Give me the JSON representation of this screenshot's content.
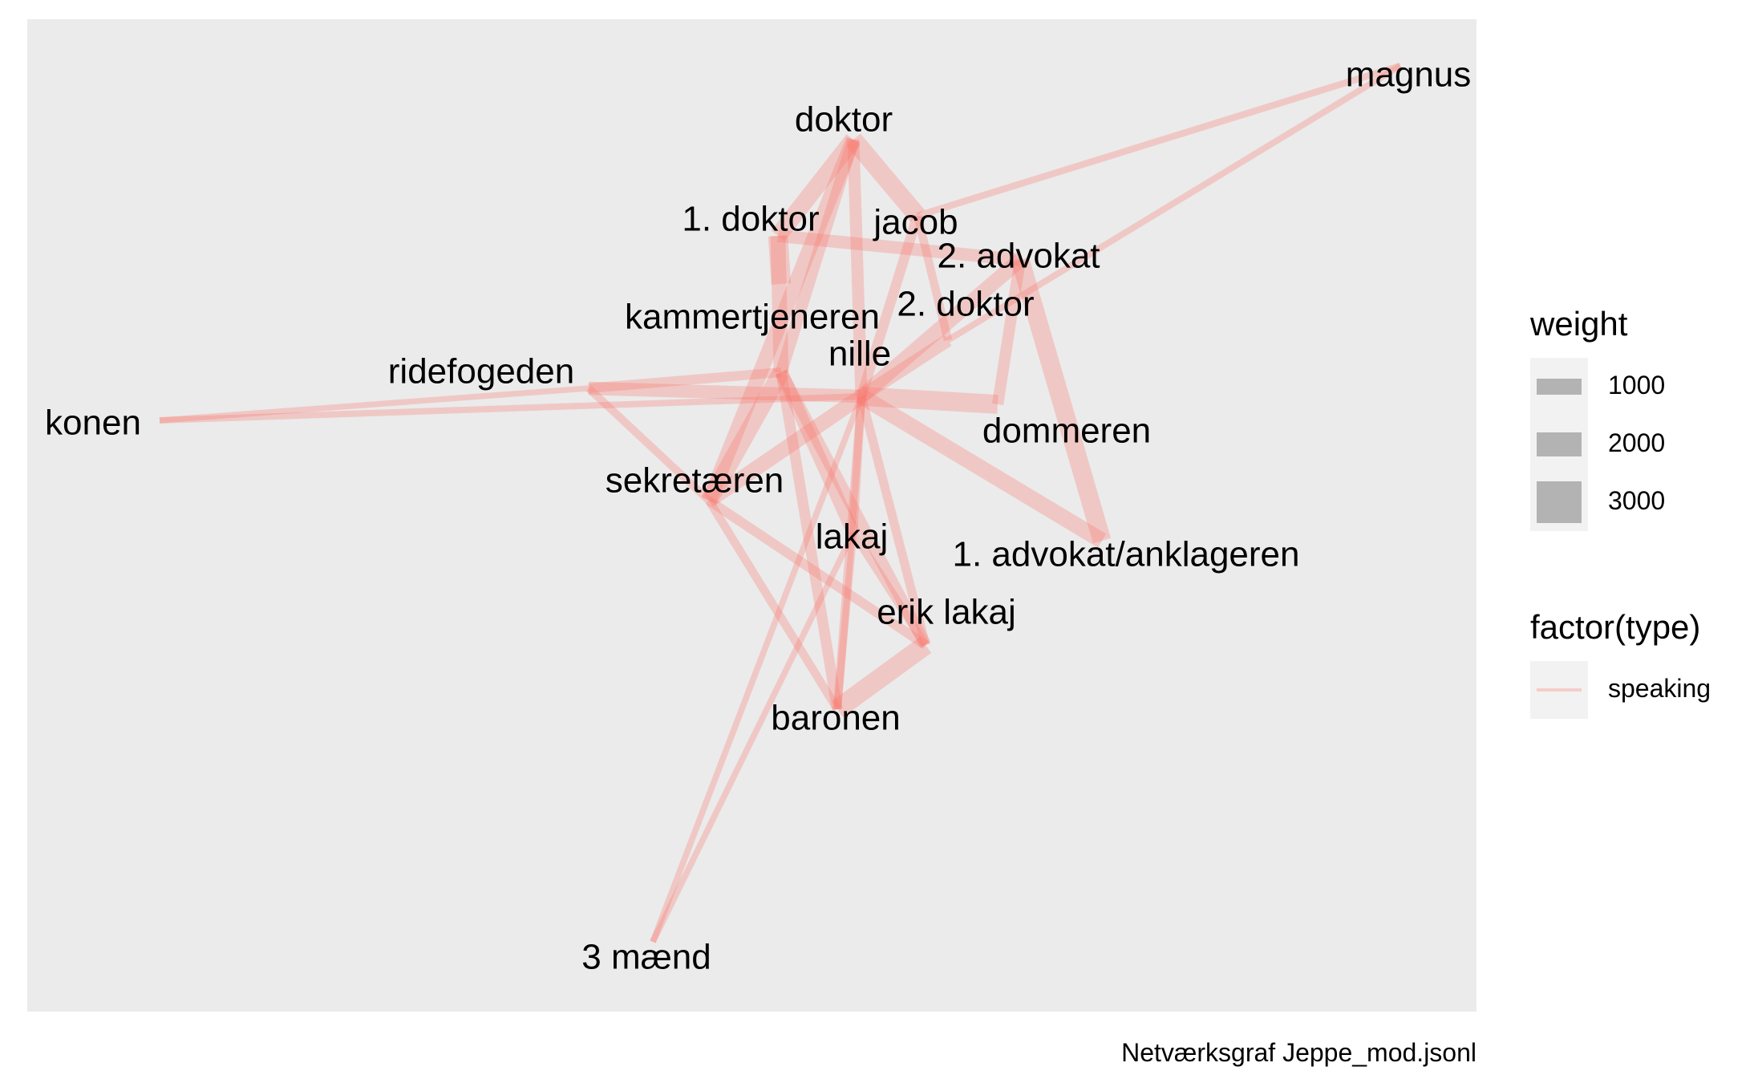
{
  "caption": "Netværksgraf Jeppe_mod.jsonl",
  "edge_color": "#f8766d",
  "panel_color": "#ebebeb",
  "legend": {
    "weight": {
      "title": "weight",
      "items": [
        {
          "label": "1000",
          "value": 1000
        },
        {
          "label": "2000",
          "value": 2000
        },
        {
          "label": "3000",
          "value": 3000
        }
      ]
    },
    "type": {
      "title": "factor(type)",
      "items": [
        {
          "label": "speaking"
        }
      ]
    }
  },
  "nodes": [
    {
      "id": "magnus",
      "label": "magnus"
    },
    {
      "id": "doktor",
      "label": "doktor"
    },
    {
      "id": "1doktor",
      "label": "1. doktor"
    },
    {
      "id": "jacob",
      "label": "jacob"
    },
    {
      "id": "2advokat",
      "label": "2. advokat"
    },
    {
      "id": "2doktor",
      "label": "2. doktor"
    },
    {
      "id": "kammertjeneren",
      "label": "kammertjeneren"
    },
    {
      "id": "nille",
      "label": "nille"
    },
    {
      "id": "ridefogeden",
      "label": "ridefogeden"
    },
    {
      "id": "konen",
      "label": "konen"
    },
    {
      "id": "dommeren",
      "label": "dommeren"
    },
    {
      "id": "sekretaeren",
      "label": "sekretæren"
    },
    {
      "id": "lakaj",
      "label": "lakaj"
    },
    {
      "id": "1advokat",
      "label": "1. advokat/anklageren"
    },
    {
      "id": "eriklakaj",
      "label": "erik lakaj"
    },
    {
      "id": "baronen",
      "label": "baronen"
    },
    {
      "id": "3maend",
      "label": "3 mænd"
    }
  ],
  "edges": [
    {
      "source": "magnus",
      "target": "jacob",
      "weight": 600
    },
    {
      "source": "magnus",
      "target": "2doktor",
      "weight": 550
    },
    {
      "source": "doktor",
      "target": "1doktor",
      "weight": 2400
    },
    {
      "source": "doktor",
      "target": "jacob",
      "weight": 2600
    },
    {
      "source": "doktor",
      "target": "kammertjeneren",
      "weight": 1500
    },
    {
      "source": "doktor",
      "target": "nille",
      "weight": 1500
    },
    {
      "source": "doktor",
      "target": "sekretaeren",
      "weight": 2000
    },
    {
      "source": "1doktor",
      "target": "1doktor",
      "weight": 2800
    },
    {
      "source": "1doktor",
      "target": "2advokat",
      "weight": 1600
    },
    {
      "source": "1doktor",
      "target": "kammertjeneren",
      "weight": 2000
    },
    {
      "source": "jacob",
      "target": "nille",
      "weight": 1200
    },
    {
      "source": "jacob",
      "target": "2doktor",
      "weight": 900
    },
    {
      "source": "2advokat",
      "target": "nille",
      "weight": 2000
    },
    {
      "source": "2advokat",
      "target": "dommeren",
      "weight": 1400
    },
    {
      "source": "2advokat",
      "target": "1advokat",
      "weight": 2600
    },
    {
      "source": "2doktor",
      "target": "nille",
      "weight": 1700
    },
    {
      "source": "kammertjeneren",
      "target": "ridefogeden",
      "weight": 1100
    },
    {
      "source": "kammertjeneren",
      "target": "lakaj",
      "weight": 1700
    },
    {
      "source": "kammertjeneren",
      "target": "eriklakaj",
      "weight": 1500
    },
    {
      "source": "kammertjeneren",
      "target": "sekretaeren",
      "weight": 2400
    },
    {
      "source": "kammertjeneren",
      "target": "baronen",
      "weight": 1300
    },
    {
      "source": "nille",
      "target": "konen",
      "weight": 550
    },
    {
      "source": "nille",
      "target": "ridefogeden",
      "weight": 1700
    },
    {
      "source": "nille",
      "target": "dommeren",
      "weight": 2700
    },
    {
      "source": "nille",
      "target": "1advokat",
      "weight": 2200
    },
    {
      "source": "nille",
      "target": "sekretaeren",
      "weight": 2000
    },
    {
      "source": "nille",
      "target": "lakaj",
      "weight": 900
    },
    {
      "source": "nille",
      "target": "eriklakaj",
      "weight": 1000
    },
    {
      "source": "nille",
      "target": "baronen",
      "weight": 900
    },
    {
      "source": "nille",
      "target": "3maend",
      "weight": 500
    },
    {
      "source": "ridefogeden",
      "target": "konen",
      "weight": 450
    },
    {
      "source": "ridefogeden",
      "target": "sekretaeren",
      "weight": 800
    },
    {
      "source": "sekretaeren",
      "target": "baronen",
      "weight": 900
    },
    {
      "source": "sekretaeren",
      "target": "eriklakaj",
      "weight": 1100
    },
    {
      "source": "lakaj",
      "target": "baronen",
      "weight": 700
    },
    {
      "source": "lakaj",
      "target": "eriklakaj",
      "weight": 900
    },
    {
      "source": "eriklakaj",
      "target": "baronen",
      "weight": 2800
    },
    {
      "source": "lakaj",
      "target": "3maend",
      "weight": 500
    }
  ]
}
